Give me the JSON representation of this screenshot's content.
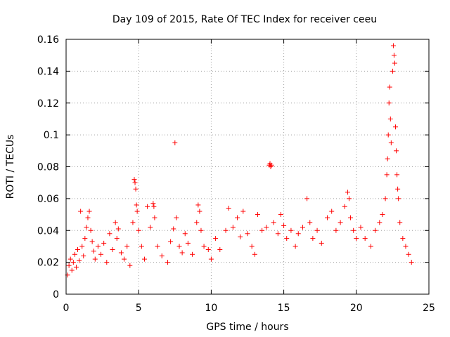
{
  "chart_data": {
    "type": "scatter",
    "title": "Day 109 of 2015, Rate Of TEC Index for receiver ceeu",
    "xlabel": "GPS time / hours",
    "ylabel": "ROTI / TECUs",
    "xlim": [
      0,
      25
    ],
    "ylim": [
      0,
      0.16
    ],
    "xticks": [
      0,
      5,
      10,
      15,
      20,
      25
    ],
    "xtick_labels": [
      "0",
      "5",
      "10",
      "15",
      "20",
      "25"
    ],
    "yticks": [
      0,
      0.02,
      0.04,
      0.06,
      0.08,
      0.1,
      0.12,
      0.14,
      0.16
    ],
    "ytick_labels": [
      "0",
      "0.02",
      "0.04",
      "0.06",
      "0.08",
      "0.1",
      "0.12",
      "0.14",
      "0.16"
    ],
    "grid": true,
    "marker": "+",
    "color": "#ff0000",
    "series": [
      {
        "name": "ROTI",
        "points": [
          [
            0.1,
            0.012
          ],
          [
            0.2,
            0.018
          ],
          [
            0.3,
            0.022
          ],
          [
            0.4,
            0.015
          ],
          [
            0.5,
            0.02
          ],
          [
            0.6,
            0.025
          ],
          [
            0.7,
            0.017
          ],
          [
            0.8,
            0.028
          ],
          [
            0.9,
            0.021
          ],
          [
            1.0,
            0.052
          ],
          [
            1.1,
            0.03
          ],
          [
            1.2,
            0.024
          ],
          [
            1.3,
            0.035
          ],
          [
            1.4,
            0.042
          ],
          [
            1.5,
            0.048
          ],
          [
            1.6,
            0.052
          ],
          [
            1.7,
            0.04
          ],
          [
            1.8,
            0.033
          ],
          [
            1.9,
            0.027
          ],
          [
            2.0,
            0.022
          ],
          [
            2.2,
            0.03
          ],
          [
            2.4,
            0.025
          ],
          [
            2.6,
            0.032
          ],
          [
            2.8,
            0.02
          ],
          [
            3.0,
            0.038
          ],
          [
            3.2,
            0.028
          ],
          [
            3.4,
            0.045
          ],
          [
            3.5,
            0.035
          ],
          [
            3.6,
            0.041
          ],
          [
            3.8,
            0.026
          ],
          [
            4.0,
            0.022
          ],
          [
            4.2,
            0.03
          ],
          [
            4.4,
            0.018
          ],
          [
            4.6,
            0.045
          ],
          [
            4.7,
            0.072
          ],
          [
            4.75,
            0.07
          ],
          [
            4.8,
            0.066
          ],
          [
            4.85,
            0.056
          ],
          [
            4.9,
            0.052
          ],
          [
            5.0,
            0.04
          ],
          [
            5.2,
            0.03
          ],
          [
            5.4,
            0.022
          ],
          [
            5.6,
            0.055
          ],
          [
            5.8,
            0.042
          ],
          [
            6.0,
            0.057
          ],
          [
            6.05,
            0.055
          ],
          [
            6.1,
            0.048
          ],
          [
            6.3,
            0.03
          ],
          [
            6.6,
            0.024
          ],
          [
            7.0,
            0.02
          ],
          [
            7.2,
            0.033
          ],
          [
            7.4,
            0.041
          ],
          [
            7.5,
            0.095
          ],
          [
            7.6,
            0.048
          ],
          [
            7.8,
            0.03
          ],
          [
            8.0,
            0.026
          ],
          [
            8.2,
            0.038
          ],
          [
            8.4,
            0.032
          ],
          [
            8.7,
            0.025
          ],
          [
            9.0,
            0.045
          ],
          [
            9.1,
            0.056
          ],
          [
            9.2,
            0.052
          ],
          [
            9.3,
            0.04
          ],
          [
            9.5,
            0.03
          ],
          [
            9.8,
            0.028
          ],
          [
            10.0,
            0.022
          ],
          [
            10.3,
            0.035
          ],
          [
            10.6,
            0.028
          ],
          [
            11.0,
            0.04
          ],
          [
            11.2,
            0.054
          ],
          [
            11.5,
            0.042
          ],
          [
            11.8,
            0.048
          ],
          [
            12.0,
            0.036
          ],
          [
            12.2,
            0.052
          ],
          [
            12.5,
            0.038
          ],
          [
            12.8,
            0.03
          ],
          [
            13.0,
            0.025
          ],
          [
            13.2,
            0.05
          ],
          [
            13.5,
            0.04
          ],
          [
            13.8,
            0.042
          ],
          [
            14.0,
            0.081
          ],
          [
            14.05,
            0.082
          ],
          [
            14.1,
            0.08
          ],
          [
            14.15,
            0.081
          ],
          [
            14.3,
            0.045
          ],
          [
            14.6,
            0.038
          ],
          [
            14.8,
            0.05
          ],
          [
            15.0,
            0.043
          ],
          [
            15.2,
            0.035
          ],
          [
            15.5,
            0.04
          ],
          [
            15.8,
            0.03
          ],
          [
            16.0,
            0.038
          ],
          [
            16.3,
            0.042
          ],
          [
            16.6,
            0.06
          ],
          [
            16.8,
            0.045
          ],
          [
            17.0,
            0.035
          ],
          [
            17.3,
            0.04
          ],
          [
            17.6,
            0.032
          ],
          [
            18.0,
            0.048
          ],
          [
            18.3,
            0.052
          ],
          [
            18.6,
            0.04
          ],
          [
            18.9,
            0.045
          ],
          [
            19.2,
            0.055
          ],
          [
            19.4,
            0.064
          ],
          [
            19.5,
            0.06
          ],
          [
            19.6,
            0.048
          ],
          [
            19.8,
            0.04
          ],
          [
            20.0,
            0.035
          ],
          [
            20.3,
            0.042
          ],
          [
            20.6,
            0.035
          ],
          [
            21.0,
            0.03
          ],
          [
            21.3,
            0.04
          ],
          [
            21.6,
            0.045
          ],
          [
            21.8,
            0.05
          ],
          [
            22.0,
            0.06
          ],
          [
            22.1,
            0.075
          ],
          [
            22.15,
            0.085
          ],
          [
            22.2,
            0.1
          ],
          [
            22.25,
            0.12
          ],
          [
            22.3,
            0.13
          ],
          [
            22.35,
            0.11
          ],
          [
            22.4,
            0.095
          ],
          [
            22.5,
            0.14
          ],
          [
            22.55,
            0.156
          ],
          [
            22.6,
            0.15
          ],
          [
            22.65,
            0.145
          ],
          [
            22.7,
            0.105
          ],
          [
            22.75,
            0.09
          ],
          [
            22.8,
            0.075
          ],
          [
            22.85,
            0.066
          ],
          [
            22.9,
            0.06
          ],
          [
            23.0,
            0.045
          ],
          [
            23.2,
            0.035
          ],
          [
            23.4,
            0.03
          ],
          [
            23.6,
            0.025
          ],
          [
            23.8,
            0.02
          ]
        ]
      }
    ]
  }
}
